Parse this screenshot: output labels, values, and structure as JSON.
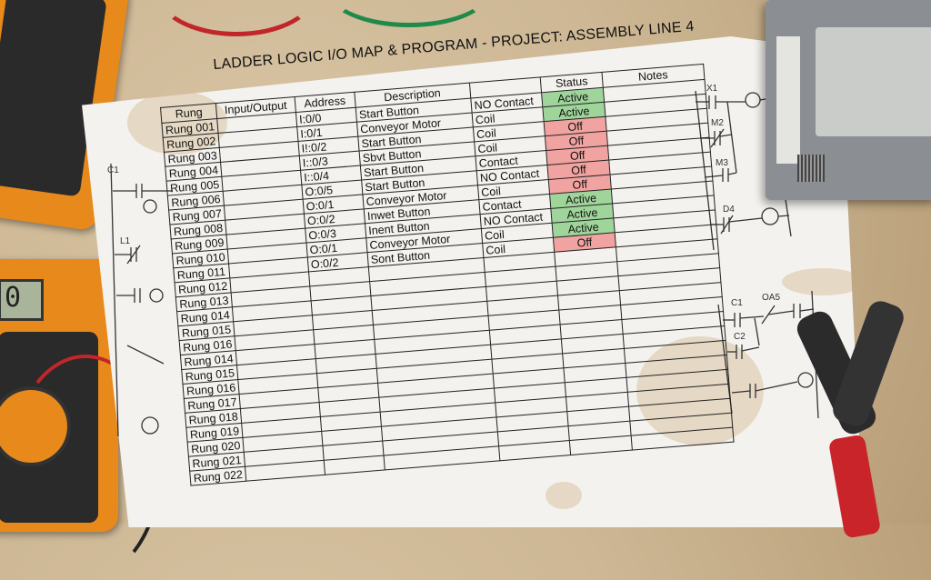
{
  "document": {
    "title": "LADDER LOGIC I/O MAP & PROGRAM - PROJECT: ASSEMBLY LINE 4",
    "columns": [
      "Rung",
      "Input/Output",
      "Address",
      "Description",
      "",
      "Status",
      "Notes"
    ],
    "rows": [
      {
        "rung": "Rung 001",
        "io": "",
        "address": "I:0/0",
        "description": "Start Button",
        "type": "NO Contact",
        "status": "Active"
      },
      {
        "rung": "Rung 002",
        "io": "",
        "address": "I:0/1",
        "description": "Conveyor Motor",
        "type": "Coil",
        "status": "Active"
      },
      {
        "rung": "Rung 003",
        "io": "",
        "address": "I!:0/2",
        "description": "Start Button",
        "type": "Coil",
        "status": "Off"
      },
      {
        "rung": "Rung 004",
        "io": "",
        "address": "I::0/3",
        "description": "Sbvt Button",
        "type": "Coil",
        "status": "Off"
      },
      {
        "rung": "Rung 005",
        "io": "",
        "address": "I::0/4",
        "description": "Start Button",
        "type": "Contact",
        "status": "Off"
      },
      {
        "rung": "Rung 006",
        "io": "",
        "address": "O:0/5",
        "description": "Start Button",
        "type": "NO Contact",
        "status": "Off"
      },
      {
        "rung": "Rung 007",
        "io": "",
        "address": "O:0/1",
        "description": "Conveyor Motor",
        "type": "Coil",
        "status": "Off"
      },
      {
        "rung": "Rung 008",
        "io": "",
        "address": "O:0/2",
        "description": "Inwet Button",
        "type": "Contact",
        "status": "Active"
      },
      {
        "rung": "Rung 009",
        "io": "",
        "address": "O:0/3",
        "description": "Inent Button",
        "type": "NO Contact",
        "status": "Active"
      },
      {
        "rung": "Rung 010",
        "io": "",
        "address": "O:0/1",
        "description": "Conveyor Motor",
        "type": "Coil",
        "status": "Active"
      },
      {
        "rung": "Rung 011",
        "io": "",
        "address": "O:0/2",
        "description": "Sont Button",
        "type": "Coil",
        "status": "Off"
      },
      {
        "rung": "Rung 012"
      },
      {
        "rung": "Rung 013"
      },
      {
        "rung": "Rung 014"
      },
      {
        "rung": "Rung 015"
      },
      {
        "rung": "Rung 016"
      },
      {
        "rung": "Rung 014"
      },
      {
        "rung": "Rung 015"
      },
      {
        "rung": "Rung 016"
      },
      {
        "rung": "Rung 017"
      },
      {
        "rung": "Rung 018"
      },
      {
        "rung": "Rung 019"
      },
      {
        "rung": "Rung 020"
      },
      {
        "rung": "Rung 021"
      },
      {
        "rung": "Rung 022"
      }
    ],
    "status_colors": {
      "Active": "#9fd49b",
      "Off": "#f0a3a0"
    }
  },
  "ladder_right": {
    "labels": [
      "X1",
      "M2",
      "M3",
      "D4",
      "C1",
      "OA5",
      "C2"
    ]
  },
  "ladder_left": {
    "labels": [
      "C1",
      "L1"
    ]
  },
  "multimeter": {
    "display": "0"
  }
}
